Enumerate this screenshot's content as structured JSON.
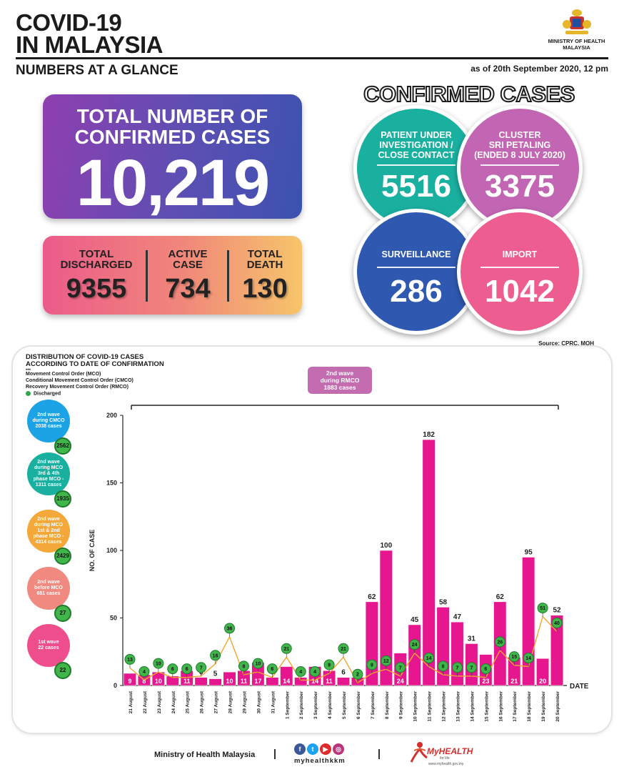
{
  "header": {
    "title_line1": "COVID-19",
    "title_line2": "IN MALAYSIA",
    "subtitle": "NUMBERS AT A GLANCE",
    "as_of": "as of 20th September 2020, 12 pm",
    "ministry": "MINISTRY OF HEALTH\nMALAYSIA"
  },
  "total": {
    "label": "TOTAL NUMBER OF\nCONFIRMED CASES",
    "value": "10,219"
  },
  "stats": [
    {
      "label": "TOTAL\nDISCHARGED",
      "value": "9355"
    },
    {
      "label": "ACTIVE\nCASE",
      "value": "734"
    },
    {
      "label": "TOTAL\nDEATH",
      "value": "130"
    }
  ],
  "confirmed": {
    "title": "CONFIRMED CASES",
    "circles": [
      {
        "label": "PATIENT UNDER\nINVESTIGATION /\nCLOSE CONTACT",
        "value": "5516",
        "color": "#1ab0a0"
      },
      {
        "label": "CLUSTER\nSRI PETALING\n(ENDED 8 JULY 2020)",
        "value": "3375",
        "color": "#c266b3"
      },
      {
        "label": "SURVEILLANCE",
        "value": "286",
        "color": "#2f59b0"
      },
      {
        "label": "IMPORT",
        "value": "1042",
        "color": "#ee5d8f"
      }
    ]
  },
  "source": "Source: CPRC, MOH",
  "panel": {
    "title": "DISTRIBUTION OF COVID-19 CASES\nACCORDING TO DATE OF CONFIRMATION",
    "stars": "***",
    "legend_mco": "Movement Control Order (MCO)",
    "legend_cmco": "Conditional Movement Control Order (CMCO)",
    "legend_rmco": "Recovery Movement Control Order (RMCO)",
    "legend_discharged": "Discharged",
    "wave_label": "2nd wave\nduring RMCO\n1883 cases",
    "waves": [
      {
        "text": "2nd wave\nduring CMCO\n2038 cases",
        "badge": "2562",
        "color": "#1ba3e6"
      },
      {
        "text": "2nd wave\nduring MCO\n3rd & 4th\nphase MCO -\n1311 cases",
        "badge": "1935",
        "color": "#1ab0a0"
      },
      {
        "text": "2nd wave\nduring MCO\n1st & 2nd\nphase MCO -\n4314 cases",
        "badge": "2429",
        "color": "#f4a83a"
      },
      {
        "text": "2nd wave\nbefore MCO\n651 cases",
        "badge": "27",
        "color": "#f08a80"
      },
      {
        "text": "1st wave\n22 cases",
        "badge": "22",
        "color": "#ee4f8c"
      }
    ]
  },
  "chart_data": {
    "type": "bar",
    "ylabel": "NO. OF CASE",
    "xlabel": "DATE",
    "ylim": [
      0,
      200
    ],
    "yticks": [
      0,
      50,
      100,
      150,
      200
    ],
    "bar_color": "#e5168e",
    "line_color": "#f2a531",
    "categories": [
      "21 August",
      "22 August",
      "23 August",
      "24 August",
      "25 August",
      "26 August",
      "27 August",
      "28 August",
      "29 August",
      "30 August",
      "31 August",
      "1 September",
      "2 September",
      "3 September",
      "4 September",
      "5 September",
      "6 September",
      "7 September",
      "8 September",
      "9 September",
      "10 September",
      "11 September",
      "12 September",
      "13 September",
      "14 September",
      "15 September",
      "16 September",
      "17 September",
      "18 September",
      "19 September",
      "20 September"
    ],
    "series": [
      {
        "name": "",
        "values": [
          9,
          8,
          10,
          7,
          11,
          6,
          5,
          10,
          11,
          17,
          6,
          14,
          6,
          14,
          11,
          6,
          6,
          62,
          100,
          24,
          45,
          182,
          58,
          47,
          31,
          23,
          62,
          21,
          95,
          20,
          52
        ]
      },
      {
        "name": "Discharged",
        "values": [
          13,
          4,
          10,
          6,
          6,
          7,
          16,
          36,
          8,
          10,
          6,
          21,
          4,
          4,
          9,
          21,
          2,
          9,
          12,
          7,
          24,
          14,
          8,
          7,
          7,
          6,
          26,
          15,
          14,
          51,
          40
        ]
      }
    ]
  },
  "footer": {
    "ministry": "Ministry of Health Malaysia",
    "social_handle": "myhealthkkm",
    "social_icons": [
      "f",
      "t",
      "▶",
      "◎"
    ],
    "brand": "MyHEALTH",
    "brand_sub": "for life",
    "url": "www.myhealth.gov.my"
  }
}
